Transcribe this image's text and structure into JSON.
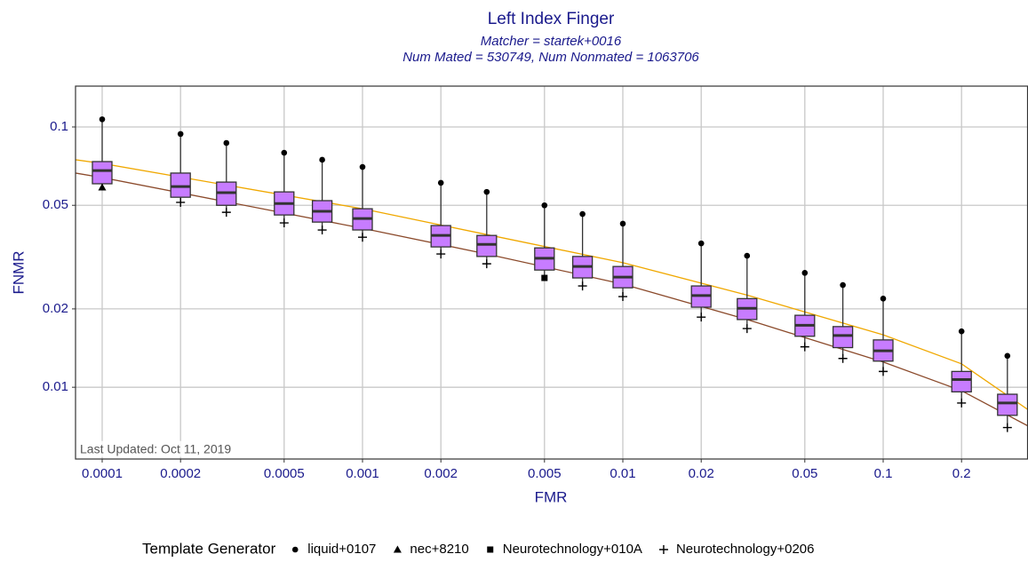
{
  "chart_data": {
    "type": "box",
    "title": "Left Index Finger",
    "subtitle": [
      "Matcher = startek+0016",
      "Num Mated = 530749, Num Nonmated = 1063706"
    ],
    "xlabel": "FMR",
    "ylabel": "FNMR",
    "annotation": "Last Updated: Oct 11, 2019",
    "log_x": true,
    "log_y": true,
    "grid": true,
    "xlim": [
      7.9e-05,
      0.36
    ],
    "ylim": [
      0.0053,
      0.1435
    ],
    "xticks": [
      0.0001,
      0.0002,
      0.0005,
      0.001,
      0.002,
      0.005,
      0.01,
      0.02,
      0.05,
      0.1,
      0.2
    ],
    "yticks": [
      0.01,
      0.02,
      0.05,
      0.1
    ],
    "box_color": "#c77cff",
    "boxes": {
      "x": [
        0.0001,
        0.0002,
        0.0003,
        0.0005,
        0.0007,
        0.001,
        0.002,
        0.003,
        0.005,
        0.007,
        0.01,
        0.02,
        0.03,
        0.05,
        0.07,
        0.1,
        0.2,
        0.3
      ],
      "q3": [
        0.0736,
        0.0665,
        0.0614,
        0.0563,
        0.0521,
        0.0485,
        0.0418,
        0.0383,
        0.0343,
        0.0318,
        0.0291,
        0.0245,
        0.0219,
        0.0189,
        0.0171,
        0.0152,
        0.0115,
        0.0094
      ],
      "median": [
        0.068,
        0.059,
        0.0559,
        0.0508,
        0.0474,
        0.0445,
        0.0383,
        0.0354,
        0.0313,
        0.0291,
        0.0265,
        0.0225,
        0.0201,
        0.0173,
        0.0158,
        0.0138,
        0.0107,
        0.0087
      ],
      "q1": [
        0.0605,
        0.0537,
        0.05,
        0.0459,
        0.0431,
        0.0402,
        0.0346,
        0.0318,
        0.0282,
        0.0263,
        0.0241,
        0.0203,
        0.0182,
        0.0157,
        0.0142,
        0.0126,
        0.0096,
        0.0078
      ]
    },
    "series": [
      {
        "name": "liquid+0107",
        "shape": "circle",
        "x": [
          0.0001,
          0.0002,
          0.0003,
          0.0005,
          0.0007,
          0.001,
          0.002,
          0.003,
          0.005,
          0.007,
          0.01,
          0.02,
          0.03,
          0.05,
          0.07,
          0.1,
          0.2,
          0.3
        ],
        "values": [
          0.107,
          0.094,
          0.0868,
          0.0796,
          0.0748,
          0.0702,
          0.061,
          0.0563,
          0.05,
          0.0463,
          0.0425,
          0.0357,
          0.032,
          0.0275,
          0.0247,
          0.0219,
          0.0164,
          0.0132
        ]
      },
      {
        "name": "nec+8210",
        "shape": "triangle",
        "x": [
          0.0001
        ],
        "values": [
          0.0586
        ]
      },
      {
        "name": "Neurotechnology+010A",
        "shape": "square",
        "x": [
          0.005
        ],
        "values": [
          0.0263
        ]
      },
      {
        "name": "Neurotechnology+0206",
        "shape": "plus",
        "x": [
          0.0002,
          0.0003,
          0.0005,
          0.0007,
          0.001,
          0.002,
          0.003,
          0.007,
          0.01,
          0.02,
          0.03,
          0.05,
          0.07,
          0.1,
          0.2,
          0.3
        ],
        "values": [
          0.0513,
          0.047,
          0.0428,
          0.0402,
          0.0377,
          0.0325,
          0.0298,
          0.0245,
          0.0223,
          0.0186,
          0.0168,
          0.0143,
          0.0129,
          0.0115,
          0.0087,
          0.007
        ]
      }
    ],
    "curves": [
      {
        "color": "#f0a800",
        "x": [
          7.9e-05,
          0.0001,
          0.001,
          0.003,
          0.01,
          0.03,
          0.1,
          0.2,
          0.36
        ],
        "values": [
          0.0748,
          0.0724,
          0.0485,
          0.0386,
          0.0301,
          0.0226,
          0.0159,
          0.0123,
          0.0082
        ]
      },
      {
        "color": "#8b4a2b",
        "x": [
          7.9e-05,
          0.0001,
          0.001,
          0.003,
          0.01,
          0.03,
          0.1,
          0.2,
          0.36
        ],
        "values": [
          0.0665,
          0.0639,
          0.0408,
          0.0325,
          0.0249,
          0.0182,
          0.0125,
          0.0097,
          0.0071
        ]
      }
    ],
    "legend_title": "Template Generator",
    "legend_position": "bottom"
  }
}
